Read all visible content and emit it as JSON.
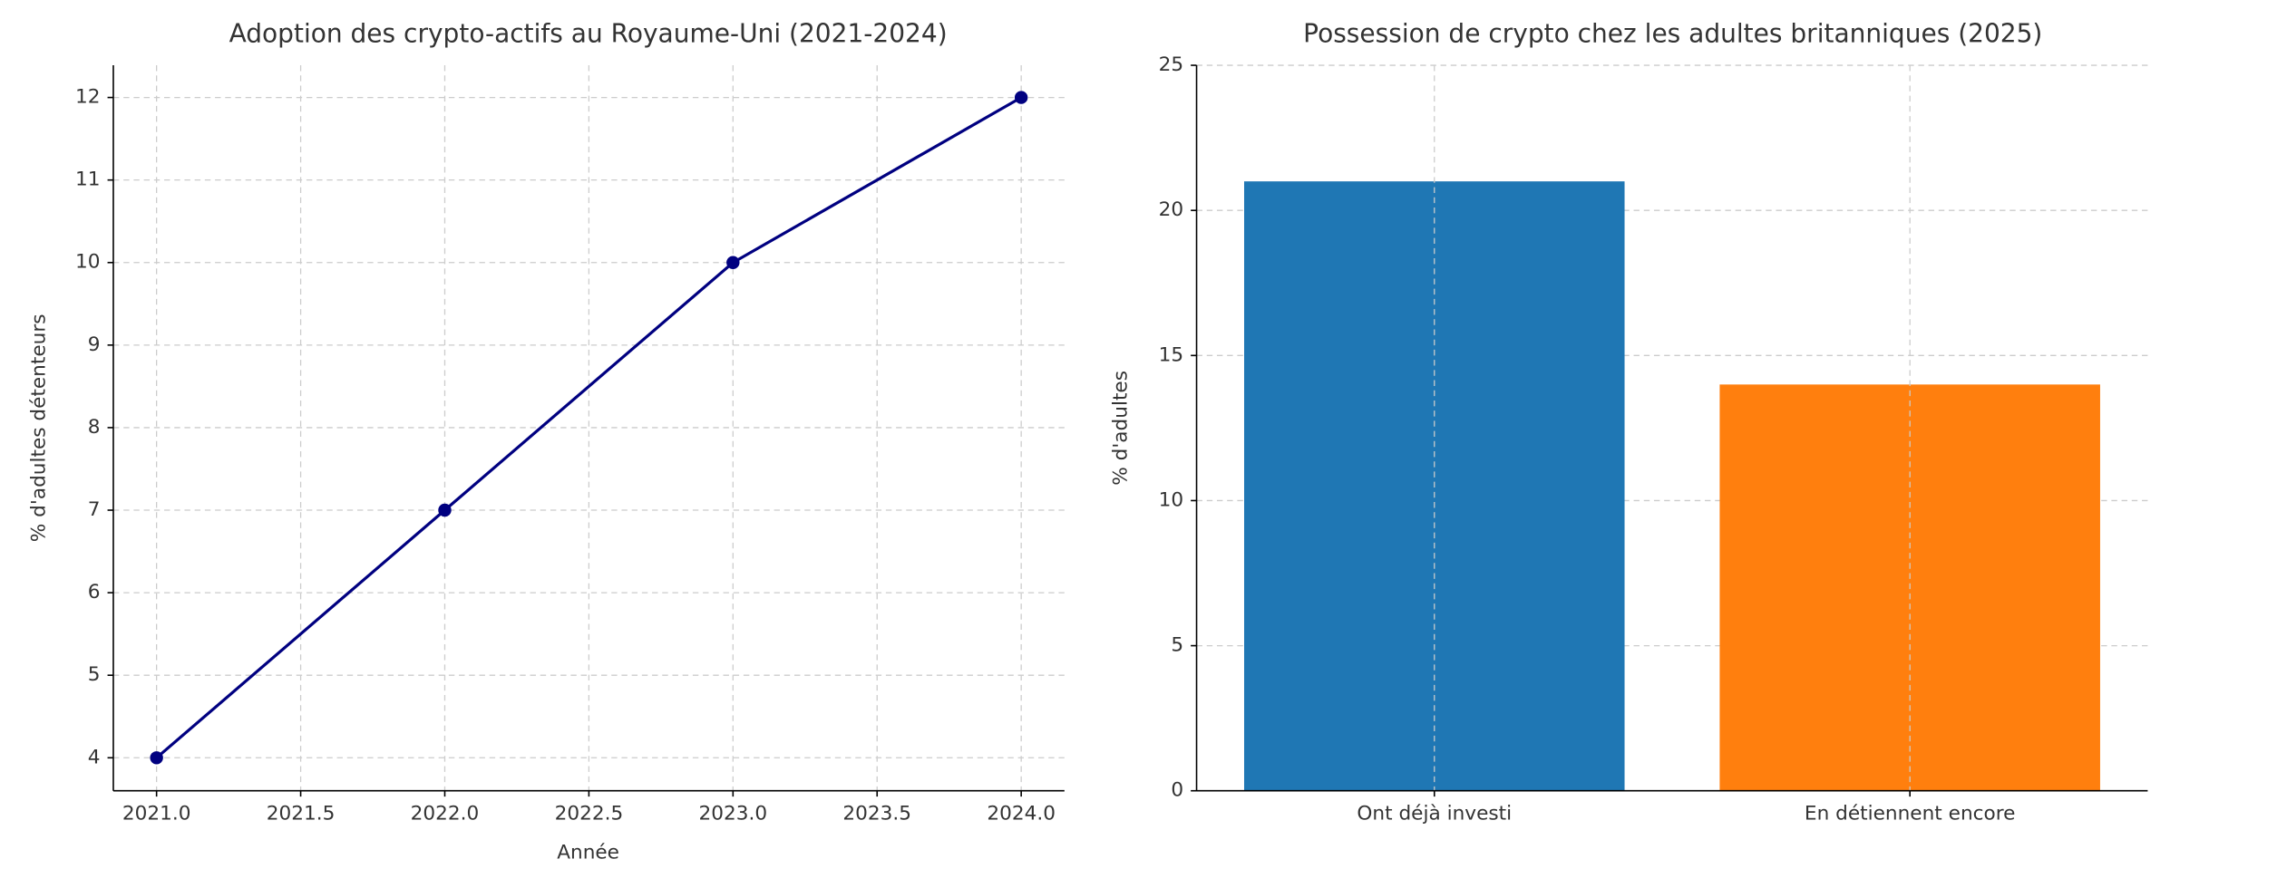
{
  "chart_data": [
    {
      "type": "line",
      "title": "Adoption des crypto-actifs au Royaume-Uni (2021-2024)",
      "xlabel": "Année",
      "ylabel": "% d'adultes détenteurs",
      "x": [
        2021,
        2022,
        2023,
        2024
      ],
      "values": [
        4,
        7,
        10,
        12
      ],
      "color": "#000080",
      "xlim": [
        2020.85,
        2024.15
      ],
      "ylim": [
        3.6,
        12.39
      ],
      "xticks": [
        {
          "value": 2021,
          "label": "2021.0"
        },
        {
          "value": 2021.5,
          "label": "2021.5"
        },
        {
          "value": 2022,
          "label": "2022.0"
        },
        {
          "value": 2022.5,
          "label": "2022.5"
        },
        {
          "value": 2023,
          "label": "2023.0"
        },
        {
          "value": 2023.5,
          "label": "2023.5"
        },
        {
          "value": 2024,
          "label": "2024.0"
        }
      ],
      "yticks": [
        4,
        5,
        6,
        7,
        8,
        9,
        10,
        11,
        12
      ],
      "grid": true
    },
    {
      "type": "bar",
      "title": "Possession de crypto chez les adultes britanniques (2025)",
      "ylabel": "% d'adultes",
      "categories": [
        "Ont déjà investi",
        "En détiennent encore"
      ],
      "values": [
        21,
        14
      ],
      "colors": [
        "#1f77b4",
        "#ff7f0e"
      ],
      "ylim": [
        0,
        25
      ],
      "yticks": [
        0,
        5,
        10,
        15,
        20,
        25
      ],
      "grid": true
    }
  ]
}
